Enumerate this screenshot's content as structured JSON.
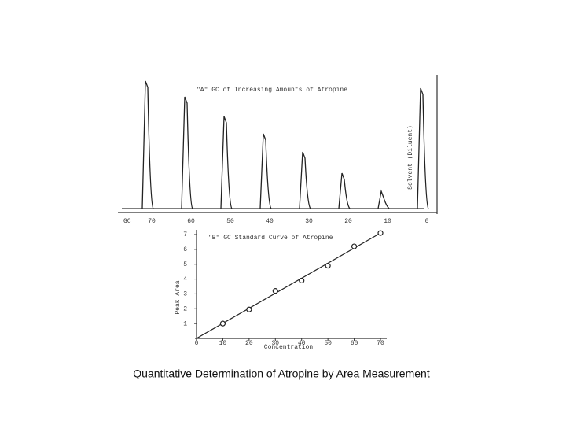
{
  "caption": "Quantitative Determination of Atropine by Area Measurement",
  "chart_data": [
    {
      "type": "line",
      "title": "\"A\" GC of Increasing Amounts of Atropine",
      "x_label": "GC",
      "y_label": "Solvent (Diluent)",
      "categories": [
        "70",
        "60",
        "50",
        "40",
        "30",
        "20",
        "10",
        "0"
      ],
      "values": [
        162,
        142,
        117,
        95,
        72,
        45,
        22,
        153
      ],
      "ylim": [
        0,
        170
      ],
      "color": "#222222"
    },
    {
      "type": "scatter",
      "title": "\"B\" GC Standard Curve of Atropine",
      "x_label": "Concentration",
      "y_label": "Peak Area",
      "x": [
        10,
        20,
        30,
        40,
        50,
        60,
        70
      ],
      "values": [
        1.0,
        1.95,
        3.2,
        3.9,
        4.9,
        6.2,
        7.1
      ],
      "trend_line": {
        "x": [
          0,
          70
        ],
        "values": [
          0,
          7.1
        ]
      },
      "xlim": [
        0,
        70
      ],
      "xticks": [
        0,
        10,
        20,
        30,
        40,
        50,
        60,
        70
      ],
      "ylim": [
        0,
        7
      ],
      "yticks": [
        1,
        2,
        3,
        4,
        5,
        6,
        7
      ],
      "color": "#222222"
    }
  ]
}
